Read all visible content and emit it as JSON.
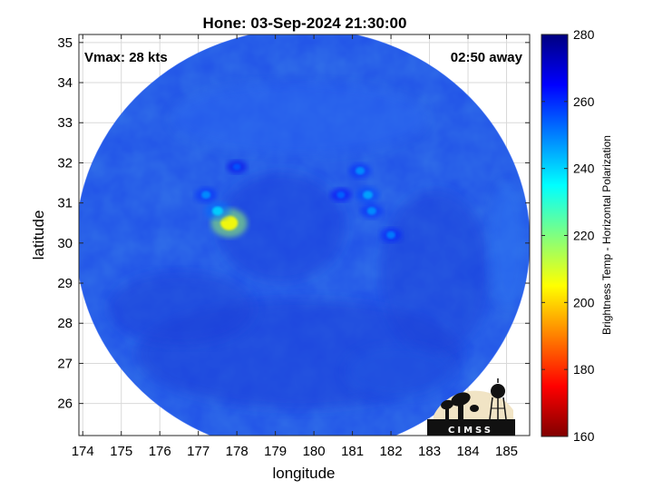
{
  "chart_data": {
    "type": "heatmap",
    "title": "Hone: 03-Sep-2024 21:30:00",
    "xlabel": "longitude",
    "ylabel": "latitude",
    "xlim": [
      173.9,
      185.6
    ],
    "ylim": [
      25.2,
      35.2
    ],
    "xticks": [
      "174",
      "175",
      "176",
      "177",
      "178",
      "179",
      "180",
      "181",
      "182",
      "183",
      "184",
      "185"
    ],
    "yticks": [
      "26",
      "27",
      "28",
      "29",
      "30",
      "31",
      "32",
      "33",
      "34",
      "35"
    ],
    "grid": true,
    "annotations": {
      "vmax": "Vmax: 28 kts",
      "time_away": "02:50 away"
    },
    "colorbar": {
      "label": "Brightness Temp - Horizontal Polarization",
      "range": [
        160,
        280
      ],
      "ticks": [
        "160",
        "180",
        "200",
        "220",
        "240",
        "260",
        "280"
      ],
      "colormap": [
        "#800000",
        "#ff0000",
        "#ff8000",
        "#ffff00",
        "#80ff80",
        "#00ffff",
        "#0080ff",
        "#0000ff",
        "#000080"
      ]
    },
    "field": {
      "background_value": 262,
      "disk_center": [
        179.5,
        30.15
      ],
      "warm_features": [
        {
          "lon": 177.8,
          "lat": 30.5,
          "value": 205
        },
        {
          "lon": 177.5,
          "lat": 30.8,
          "value": 240
        },
        {
          "lon": 177.2,
          "lat": 31.2,
          "value": 248
        },
        {
          "lon": 181.2,
          "lat": 31.8,
          "value": 248
        },
        {
          "lon": 181.4,
          "lat": 31.2,
          "value": 245
        },
        {
          "lon": 181.5,
          "lat": 30.8,
          "value": 248
        },
        {
          "lon": 182.0,
          "lat": 30.2,
          "value": 250
        },
        {
          "lon": 180.7,
          "lat": 31.2,
          "value": 253
        },
        {
          "lon": 178.0,
          "lat": 31.9,
          "value": 255
        }
      ]
    }
  },
  "logo": {
    "text": "CIMSS"
  }
}
